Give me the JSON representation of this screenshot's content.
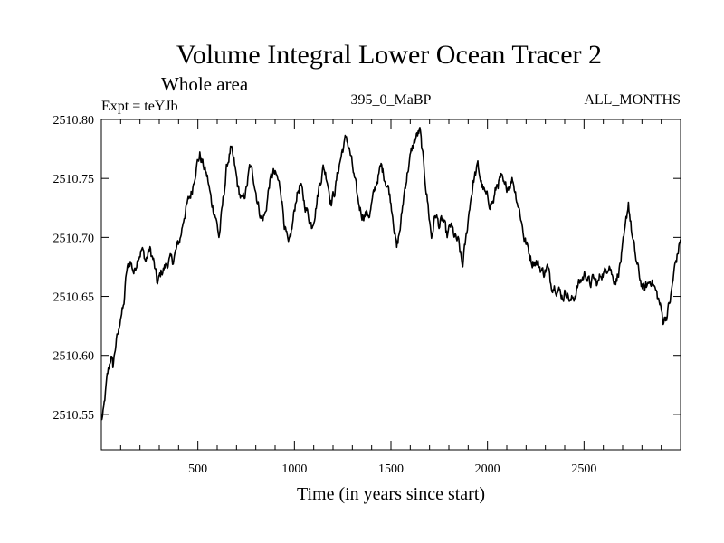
{
  "chart_data": {
    "type": "line",
    "title": "Volume Integral Lower Ocean Tracer 2",
    "subtitle": "Whole area",
    "left_label": "Expt = teYJb",
    "center_label": "395_0_MaBP",
    "right_label": "ALL_MONTHS",
    "xlabel": "Time (in years since start)",
    "ylabel": "",
    "xlim": [
      0,
      3000
    ],
    "ylim": [
      2510.52,
      2510.8
    ],
    "x_ticks": [
      500,
      1000,
      1500,
      2000,
      2500
    ],
    "x_tick_labels": [
      "500",
      "1000",
      "1500",
      "2000",
      "2500"
    ],
    "y_ticks": [
      2510.55,
      2510.6,
      2510.65,
      2510.7,
      2510.75,
      2510.8
    ],
    "y_tick_labels": [
      "2510.55",
      "2510.60",
      "2510.65",
      "2510.70",
      "2510.75",
      "2510.80"
    ],
    "grid": false,
    "series": [
      {
        "name": "Volume Integral Lower Ocean Tracer 2",
        "color": "#000000",
        "x": [
          0,
          10,
          20,
          30,
          40,
          50,
          60,
          75,
          90,
          100,
          115,
          130,
          150,
          170,
          190,
          210,
          230,
          250,
          270,
          290,
          310,
          330,
          350,
          370,
          390,
          410,
          430,
          450,
          470,
          490,
          510,
          530,
          550,
          570,
          590,
          610,
          630,
          650,
          670,
          690,
          710,
          730,
          750,
          770,
          790,
          810,
          830,
          850,
          870,
          890,
          910,
          930,
          950,
          970,
          990,
          1010,
          1030,
          1050,
          1070,
          1090,
          1110,
          1130,
          1150,
          1170,
          1190,
          1210,
          1230,
          1250,
          1270,
          1290,
          1310,
          1330,
          1350,
          1370,
          1390,
          1410,
          1430,
          1450,
          1470,
          1490,
          1510,
          1530,
          1550,
          1570,
          1590,
          1610,
          1630,
          1650,
          1670,
          1690,
          1710,
          1730,
          1750,
          1770,
          1790,
          1810,
          1830,
          1850,
          1870,
          1890,
          1910,
          1930,
          1950,
          1970,
          1990,
          2010,
          2030,
          2050,
          2070,
          2090,
          2110,
          2130,
          2150,
          2170,
          2190,
          2210,
          2230,
          2250,
          2270,
          2290,
          2310,
          2330,
          2350,
          2370,
          2390,
          2410,
          2430,
          2450,
          2470,
          2490,
          2510,
          2530,
          2550,
          2570,
          2590,
          2610,
          2630,
          2650,
          2670,
          2690,
          2710,
          2730,
          2750,
          2770,
          2790,
          2810,
          2830,
          2850,
          2870,
          2890,
          2910,
          2930,
          2950,
          2970,
          2990,
          3000
        ],
        "values": [
          2510.545,
          2510.55,
          2510.565,
          2510.58,
          2510.59,
          2510.6,
          2510.59,
          2510.61,
          2510.62,
          2510.635,
          2510.64,
          2510.67,
          2510.68,
          2510.67,
          2510.685,
          2510.69,
          2510.68,
          2510.69,
          2510.68,
          2510.66,
          2510.67,
          2510.675,
          2510.68,
          2510.68,
          2510.69,
          2510.7,
          2510.72,
          2510.73,
          2510.74,
          2510.76,
          2510.77,
          2510.76,
          2510.75,
          2510.73,
          2510.72,
          2510.7,
          2510.73,
          2510.76,
          2510.775,
          2510.76,
          2510.74,
          2510.73,
          2510.74,
          2510.76,
          2510.75,
          2510.73,
          2510.715,
          2510.72,
          2510.745,
          2510.755,
          2510.75,
          2510.74,
          2510.71,
          2510.69,
          2510.71,
          2510.735,
          2510.745,
          2510.73,
          2510.72,
          2510.71,
          2510.725,
          2510.745,
          2510.76,
          2510.75,
          2510.73,
          2510.74,
          2510.76,
          2510.775,
          2510.785,
          2510.77,
          2510.75,
          2510.73,
          2510.72,
          2510.72,
          2510.72,
          2510.735,
          2510.75,
          2510.76,
          2510.75,
          2510.74,
          2510.72,
          2510.69,
          2510.71,
          2510.74,
          2510.76,
          2510.775,
          2510.785,
          2510.79,
          2510.76,
          2510.73,
          2510.7,
          2510.72,
          2510.71,
          2510.715,
          2510.7,
          2510.71,
          2510.7,
          2510.695,
          2510.675,
          2510.7,
          2510.73,
          2510.75,
          2510.76,
          2510.745,
          2510.735,
          2510.73,
          2510.73,
          2510.745,
          2510.75,
          2510.74,
          2510.745,
          2510.75,
          2510.735,
          2510.72,
          2510.7,
          2510.69,
          2510.68,
          2510.68,
          2510.675,
          2510.67,
          2510.675,
          2510.66,
          2510.66,
          2510.655,
          2510.65,
          2510.655,
          2510.645,
          2510.65,
          2510.66,
          2510.665,
          2510.67,
          2510.66,
          2510.665,
          2510.66,
          2510.67,
          2510.67,
          2510.68,
          2510.665,
          2510.665,
          2510.68,
          2510.7,
          2510.73,
          2510.7,
          2510.68,
          2510.665,
          2510.655,
          2510.66,
          2510.665,
          2510.655,
          2510.645,
          2510.63,
          2510.635,
          2510.65,
          2510.675,
          2510.69,
          2510.7
        ]
      }
    ]
  }
}
